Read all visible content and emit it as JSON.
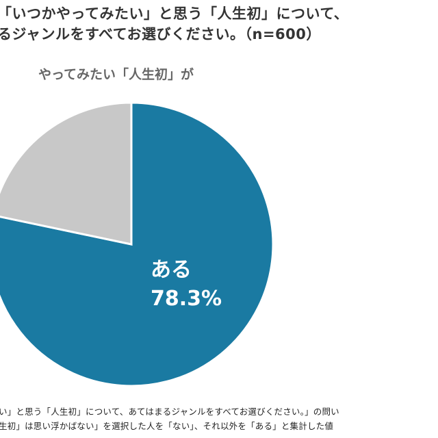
{
  "header": {
    "title_line1": "「いつかやってみたい」と思う「人生初」について、",
    "title_line2": "るジャンルをすべてお選びください。（n=600）"
  },
  "chart_data": {
    "type": "pie",
    "title": "やってみたい「人生初」が",
    "slices": [
      {
        "label": "ある",
        "value": 78.3,
        "value_label": "78.3%",
        "color": "#1a7aa2"
      },
      {
        "label": "",
        "value": 21.7,
        "value_label": "",
        "color": "#c8c8c8"
      }
    ]
  },
  "footnotes": {
    "line1": "い」と思う「人生初」について、あてはまるジャンルをすべてお選びください。」の問い",
    "line2": "生初」は思い浮かばない」を選択した人を「ない」、それ以外を「ある」と集計した値"
  }
}
